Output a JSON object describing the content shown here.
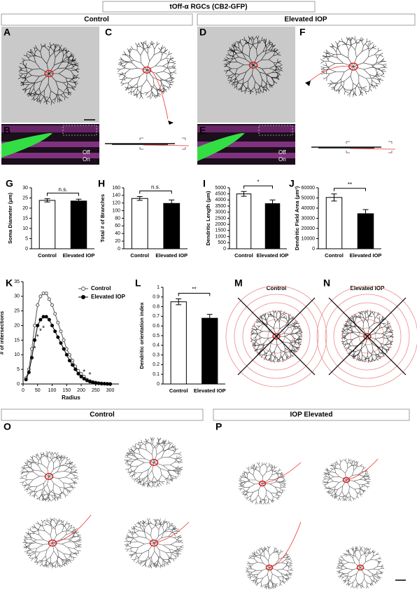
{
  "figure": {
    "header": "tOff-α RGCs (CB2-GFP)",
    "control": "Control",
    "elevated": "Elevated IOP",
    "panel_a": "A",
    "panel_b": "B",
    "panel_c": "C",
    "panel_d": "D",
    "panel_e": "E",
    "panel_f": "F",
    "off_b": "Off",
    "on_b": "On",
    "off_e": "Off",
    "on_e": "On",
    "panel_m": "M",
    "m_label": "Control",
    "panel_n": "N",
    "n_label": "Elevated IOP",
    "panel_o": "O",
    "o_title": "Control",
    "panel_p": "P",
    "p_title": "IOP Elevated"
  },
  "chart_data": [
    {
      "type": "bar",
      "label": "G",
      "ylabel": "Soma Diameter (μm)",
      "categories": [
        "Control",
        "Elevated IOP"
      ],
      "values": [
        23.8,
        23.5
      ],
      "errors": [
        0.8,
        0.9
      ],
      "colors": [
        "#ffffff",
        "#000000"
      ],
      "ylim": [
        0,
        30
      ],
      "yticks": [
        0,
        5,
        10,
        15,
        20,
        25,
        30
      ],
      "annotation": "n.s."
    },
    {
      "type": "bar",
      "label": "H",
      "ylabel": "Total # of Branches",
      "categories": [
        "Control",
        "Elevated IOP"
      ],
      "values": [
        132,
        119
      ],
      "errors": [
        5,
        9
      ],
      "colors": [
        "#ffffff",
        "#000000"
      ],
      "ylim": [
        0,
        160
      ],
      "yticks": [
        0,
        20,
        40,
        60,
        80,
        100,
        120,
        140,
        160
      ],
      "annotation": "n.s."
    },
    {
      "type": "bar",
      "label": "I",
      "ylabel": "Dendritic Length (μm)",
      "categories": [
        "Control",
        "Elevated IOP"
      ],
      "values": [
        4500,
        3700
      ],
      "errors": [
        200,
        300
      ],
      "colors": [
        "#ffffff",
        "#000000"
      ],
      "ylim": [
        0,
        5000
      ],
      "yticks": [
        0,
        500,
        1000,
        1500,
        2000,
        2500,
        3000,
        3500,
        4000,
        4500,
        5000
      ],
      "annotation": "*"
    },
    {
      "type": "bar",
      "label": "J",
      "ylabel": "Dendritic Field Area (μm²)",
      "categories": [
        "Control",
        "Elevated IOP"
      ],
      "values": [
        50500,
        34500
      ],
      "errors": [
        3500,
        4000
      ],
      "colors": [
        "#ffffff",
        "#000000"
      ],
      "ylim": [
        0,
        60000
      ],
      "yticks": [
        0,
        10000,
        20000,
        30000,
        40000,
        50000,
        60000
      ],
      "annotation": "**"
    },
    {
      "type": "line",
      "label": "K",
      "ylabel": "# of intersections",
      "xlabel": "Radius",
      "x": [
        10,
        20,
        30,
        40,
        50,
        60,
        70,
        80,
        90,
        100,
        110,
        120,
        130,
        140,
        150,
        160,
        170,
        180,
        190,
        200,
        210,
        220,
        230,
        240,
        250,
        260,
        270,
        280,
        290,
        300
      ],
      "series": [
        {
          "name": "Control",
          "color": "#555555",
          "marker": "open",
          "values": [
            2,
            5,
            12,
            20,
            27,
            30,
            31,
            31,
            29,
            27,
            24,
            21,
            18,
            15,
            12,
            10,
            8,
            6,
            4.5,
            3.5,
            2.5,
            1.5,
            1,
            0.7,
            0.5,
            0.3,
            0.2,
            0.1,
            0.1,
            0
          ]
        },
        {
          "name": "Elevated IOP",
          "color": "#000000",
          "marker": "filled",
          "values": [
            1.5,
            4,
            9,
            15,
            20,
            22,
            23,
            23,
            22,
            20,
            18,
            16,
            14,
            12,
            10,
            8,
            6.5,
            5,
            3.5,
            2.5,
            1.8,
            1.2,
            0.8,
            0.5,
            0.3,
            0.2,
            0.1,
            0.1,
            0,
            0
          ]
        }
      ],
      "xlim": [
        0,
        330
      ],
      "xticks": [
        0,
        50,
        100,
        150,
        200,
        250,
        300
      ],
      "ylim": [
        0,
        35
      ],
      "yticks": [
        0,
        5,
        10,
        15,
        20,
        25,
        30,
        35
      ],
      "annotations": [
        {
          "text": "*",
          "x": 40,
          "y": 12
        },
        {
          "text": "*",
          "x": 50,
          "y": 16
        },
        {
          "text": "*",
          "x": 60,
          "y": 18
        },
        {
          "text": "*",
          "x": 70,
          "y": 19
        },
        {
          "text": "*",
          "x": 210,
          "y": 4
        },
        {
          "text": "*",
          "x": 230,
          "y": 3
        }
      ]
    },
    {
      "type": "bar",
      "label": "L",
      "ylabel": "Dendritic orientation index",
      "categories": [
        "Control",
        "Elevated IOP"
      ],
      "values": [
        0.85,
        0.68
      ],
      "errors": [
        0.03,
        0.04
      ],
      "colors": [
        "#ffffff",
        "#000000"
      ],
      "ylim": [
        0,
        1
      ],
      "yticks": [
        0,
        0.1,
        0.2,
        0.3,
        0.4,
        0.5,
        0.6,
        0.7,
        0.8,
        0.9,
        1
      ],
      "annotation": "**"
    }
  ]
}
